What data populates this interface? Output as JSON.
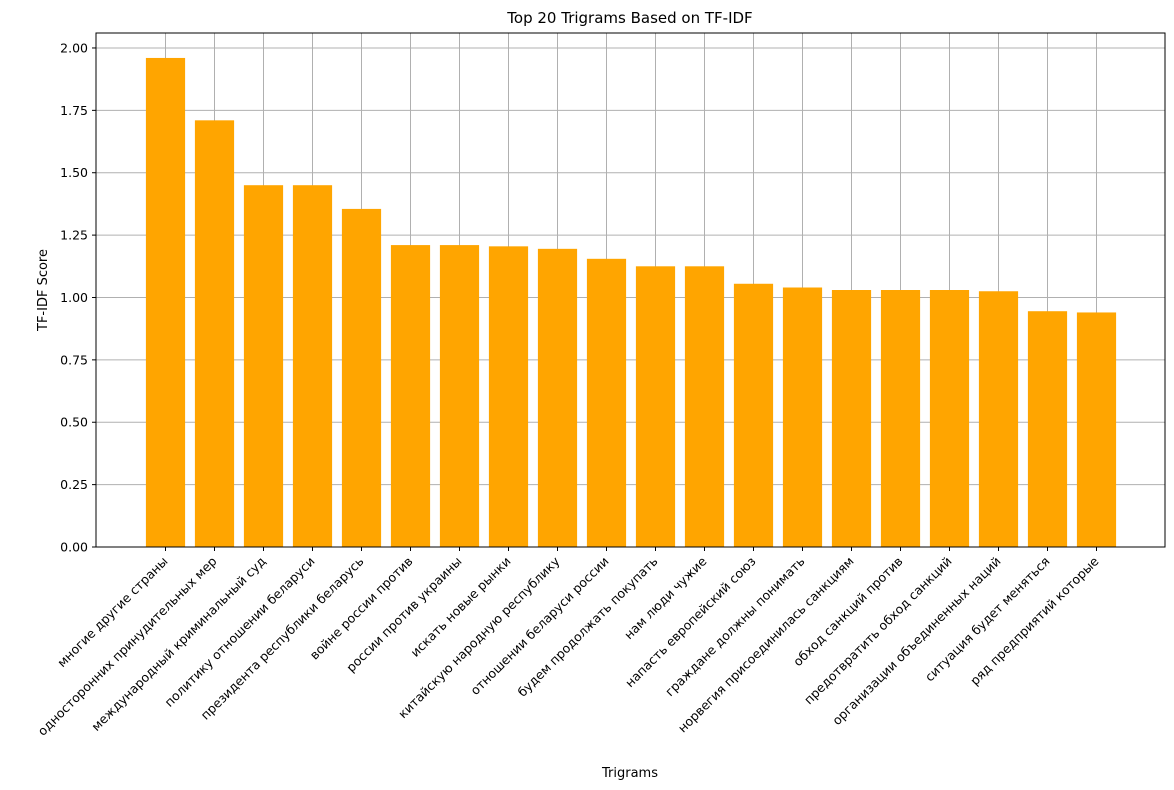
{
  "chart_data": {
    "type": "bar",
    "title": "Top 20 Trigrams Based on TF-IDF",
    "xlabel": "Trigrams",
    "ylabel": "TF-IDF Score",
    "ylim": [
      0,
      2.06
    ],
    "yticks": [
      "0.00",
      "0.25",
      "0.50",
      "0.75",
      "1.00",
      "1.25",
      "1.50",
      "1.75",
      "2.00"
    ],
    "grid": true,
    "bar_color": "#FFA500",
    "categories": [
      "многие другие страны",
      "односторонних принудительных мер",
      "международный криминальный суд",
      "политику отношении беларуси",
      "президента республики беларусь",
      "войне россии против",
      "россии против украины",
      "искать новые рынки",
      "китайскую народную республику",
      "отношении беларуси россии",
      "будем продолжать покупать",
      "нам люди чужие",
      "напасть европейский союз",
      "граждане должны понимать",
      "норвегия присоединилась санкциям",
      "обход санкций против",
      "предотвратить обход санкций",
      "организации объединенных наций",
      "ситуация будет меняться",
      "ряд предприятий которые"
    ],
    "values": [
      1.96,
      1.71,
      1.45,
      1.45,
      1.355,
      1.21,
      1.21,
      1.205,
      1.195,
      1.155,
      1.125,
      1.125,
      1.055,
      1.04,
      1.03,
      1.03,
      1.03,
      1.025,
      0.945,
      0.94
    ]
  }
}
